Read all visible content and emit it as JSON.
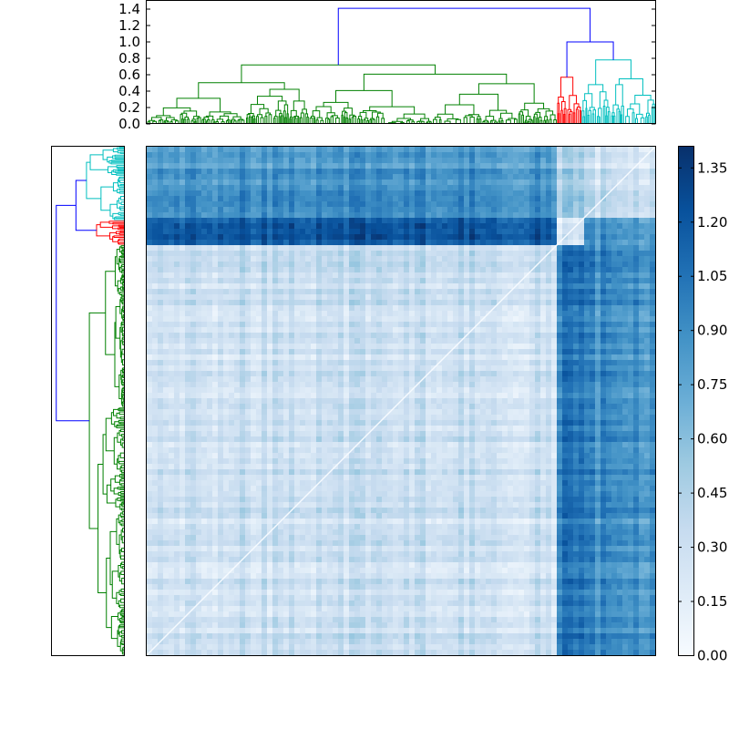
{
  "chart_data": [
    {
      "type": "dendrogram",
      "orientation": "top",
      "title": "",
      "xlabel": "",
      "ylabel": "",
      "ylim": [
        0,
        1.5
      ],
      "yticks": [
        "0.0",
        "0.2",
        "0.4",
        "0.6",
        "0.8",
        "1.0",
        "1.2",
        "1.4"
      ],
      "ytick_values": [
        0.0,
        0.2,
        0.4,
        0.6,
        0.8,
        1.0,
        1.2,
        1.4
      ],
      "leaf_range": [
        0,
        1
      ],
      "clusters": [
        {
          "color": "#008000",
          "leaf_start": 0.0,
          "leaf_end": 0.807,
          "top_height": 0.72,
          "seed": 3,
          "levels": 8
        },
        {
          "color": "#ff0000",
          "leaf_start": 0.807,
          "leaf_end": 0.855,
          "top_height": 0.57,
          "seed": 11,
          "levels": 5
        },
        {
          "color": "#00bfbf",
          "leaf_start": 0.855,
          "leaf_end": 1.0,
          "top_height": 0.78,
          "seed": 23,
          "levels": 6
        }
      ],
      "links": [
        {
          "color": "#0000ff",
          "left": "cluster-red",
          "right": "cluster-cyan",
          "height": 1.0
        },
        {
          "color": "#0000ff",
          "left": "cluster-green",
          "right": "link-1",
          "height": 1.41
        }
      ]
    },
    {
      "type": "dendrogram",
      "orientation": "left",
      "title": "",
      "xlabel": "",
      "ylabel": "",
      "leaf_range": [
        0,
        1
      ],
      "clusters": [
        {
          "color": "#00bfbf",
          "leaf_start": 0.0,
          "leaf_end": 0.145,
          "top_height": 0.78,
          "seed": 23,
          "levels": 6
        },
        {
          "color": "#ff0000",
          "leaf_start": 0.145,
          "leaf_end": 0.193,
          "top_height": 0.57,
          "seed": 11,
          "levels": 5
        },
        {
          "color": "#008000",
          "leaf_start": 0.193,
          "leaf_end": 1.0,
          "top_height": 0.72,
          "seed": 3,
          "levels": 8
        }
      ],
      "links": [
        {
          "color": "#0000ff",
          "left": "cluster-cyan",
          "right": "cluster-red",
          "height": 1.0
        },
        {
          "color": "#0000ff",
          "left": "link-1",
          "right": "cluster-green",
          "height": 1.41
        }
      ]
    },
    {
      "type": "heatmap",
      "title": "",
      "xlabel": "",
      "ylabel": "",
      "colormap": "Blues",
      "value_range": [
        0.0,
        1.41
      ],
      "row_blocks": [
        {
          "name": "cyan-cluster",
          "start": 0.0,
          "end": 0.145
        },
        {
          "name": "red-cluster",
          "start": 0.145,
          "end": 0.193
        },
        {
          "name": "green-cluster",
          "start": 0.193,
          "end": 1.0
        }
      ],
      "col_blocks": [
        {
          "name": "green-cluster",
          "start": 0.0,
          "end": 0.807
        },
        {
          "name": "red-cluster",
          "start": 0.807,
          "end": 0.855
        },
        {
          "name": "cyan-cluster",
          "start": 0.855,
          "end": 1.0
        }
      ],
      "block_means": [
        [
          0.85,
          0.45,
          0.3
        ],
        [
          1.2,
          0.2,
          0.85
        ],
        [
          0.3,
          1.0,
          0.9
        ]
      ],
      "diagonal_value": 0.0
    },
    {
      "type": "colorbar",
      "title": "",
      "range": [
        0.0,
        1.41
      ],
      "ticks": [
        "0.00",
        "0.15",
        "0.30",
        "0.45",
        "0.60",
        "0.75",
        "0.90",
        "1.05",
        "1.20",
        "1.35"
      ],
      "tick_values": [
        0.0,
        0.15,
        0.3,
        0.45,
        0.6,
        0.75,
        0.9,
        1.05,
        1.2,
        1.35
      ],
      "stops": [
        "#f7fbff",
        "#deebf7",
        "#c6dbef",
        "#9ecae1",
        "#6baed6",
        "#4292c6",
        "#2171b5",
        "#08519c",
        "#08306b"
      ]
    }
  ]
}
